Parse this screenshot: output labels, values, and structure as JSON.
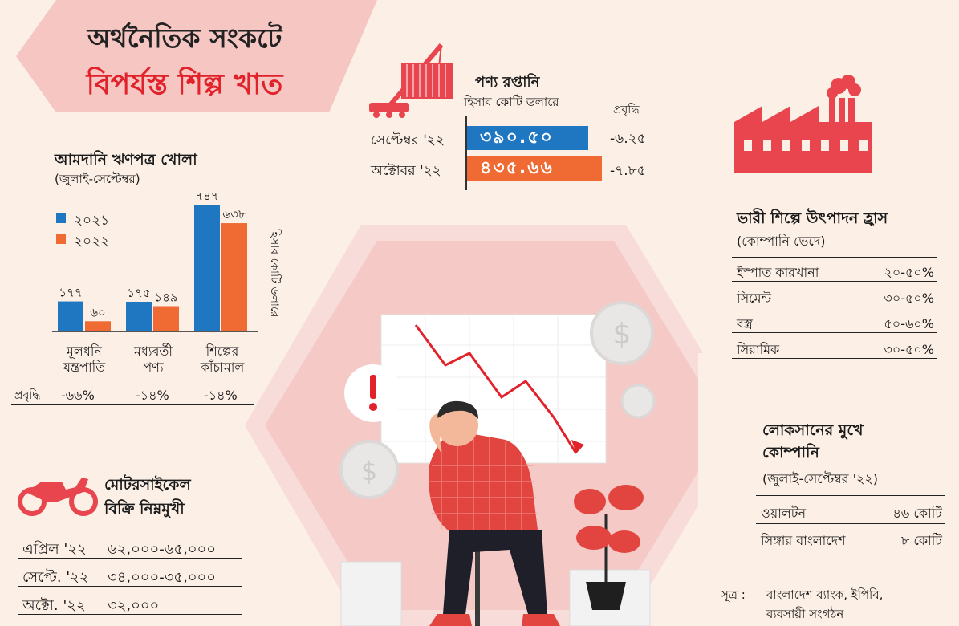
{
  "title": {
    "line1": "অর্থনৈতিক সংকটে",
    "line2": "বিপর্যস্ত শিল্প খাত"
  },
  "colors": {
    "blue": "#1f77c1",
    "orange": "#f06a33",
    "red": "#e2222b",
    "pink": "#f5c6c2",
    "bg": "#fcefe6"
  },
  "lc": {
    "title": "আমদানি ঋণপত্র খোলা",
    "subtitle": "(জুলাই-সেপ্টেম্বর)",
    "unit": "হিসাব কোটি ডলারে",
    "growth_label": "প্রবৃদ্ধি",
    "legend": [
      "২০২১",
      "২০২২"
    ]
  },
  "chart_data": [
    {
      "type": "bar",
      "title": "আমদানি ঋণপত্র খোলা",
      "subtitle": "(জুলাই-সেপ্টেম্বর)",
      "ylabel": "হিসাব কোটি ডলারে",
      "ylim": [
        0,
        747
      ],
      "categories": [
        {
          "line1": "মূলধনি",
          "line2": "যন্ত্রপাতি"
        },
        {
          "line1": "মধ্যবর্তী",
          "line2": "পণ্য"
        },
        {
          "line1": "শিল্পের",
          "line2": "কাঁচামাল"
        }
      ],
      "series": [
        {
          "name": "২০২১",
          "values": [
            177,
            175,
            747
          ],
          "labels": [
            "১৭৭",
            "১৭৫",
            "৭৪৭"
          ]
        },
        {
          "name": "২০২২",
          "values": [
            60,
            149,
            638
          ],
          "labels": [
            "৬০",
            "১৪৯",
            "৬৩৮"
          ]
        }
      ],
      "growth": [
        "-৬৬%",
        "-১৪%",
        "-১৪%"
      ],
      "legend": "left"
    },
    {
      "type": "bar",
      "orientation": "horizontal",
      "title": "পণ্য রপ্তানি",
      "subtitle": "হিসাব কোটি ডলারে",
      "growth_header": "প্রবৃদ্ধি",
      "categories": [
        "সেপ্টেম্বর '২২",
        "অক্টোবর '২২"
      ],
      "values": [
        390.5,
        435.66
      ],
      "labels": [
        "৩৯০.৫০",
        "৪৩৫.৬৬"
      ],
      "growth": [
        "-৬.২৫",
        "-৭.৮৫"
      ]
    },
    {
      "type": "table",
      "title": "ভারী শিল্পে উৎপাদন হ্রাস",
      "subtitle": "(কোম্পানি ভেদে)",
      "rows": [
        {
          "name": "ইস্পাত কারখানা",
          "value": "২০-৫০%"
        },
        {
          "name": "সিমেন্ট",
          "value": "৩০-৫০%"
        },
        {
          "name": "বস্ত্র",
          "value": "৫০-৬০%"
        },
        {
          "name": "সিরামিক",
          "value": "৩০-৫০%"
        }
      ]
    },
    {
      "type": "table",
      "title": "লোকসানের মুখে কোম্পানি",
      "title_line1": "লোকসানের মুখে",
      "title_line2": "কোম্পানি",
      "subtitle": "(জুলাই-সেপ্টেম্বর '২২)",
      "rows": [
        {
          "name": "ওয়ালটন",
          "value": "৪৬ কোটি"
        },
        {
          "name": "সিঙ্গার বাংলাদেশ",
          "value": "৮ কোটি"
        }
      ]
    },
    {
      "type": "table",
      "title": "মোটরসাইকেল বিক্রি নিম্নমুখী",
      "title_line1": "মোটরসাইকেল",
      "title_line2": "বিক্রি নিম্নমুখী",
      "rows": [
        {
          "name": "এপ্রিল '২২",
          "value": "৬২,০০০-৬৫,০০০"
        },
        {
          "name": "সেপ্টে. '২২",
          "value": "৩৪,০০০-৩৫,০০০"
        },
        {
          "name": "অক্টো. '২২",
          "value": "৩২,০০০"
        }
      ]
    }
  ],
  "source": {
    "label": "সূত্র :",
    "line1": "বাংলাদেশ ব্যাংক, ইপিবি,",
    "line2": "ব্যবসায়ী সংগঠন"
  },
  "icons": [
    "crane-container-icon",
    "factory-icon",
    "motorcycle-icon",
    "exclamation-icon",
    "dollar-coin-icon",
    "plant-icon"
  ]
}
